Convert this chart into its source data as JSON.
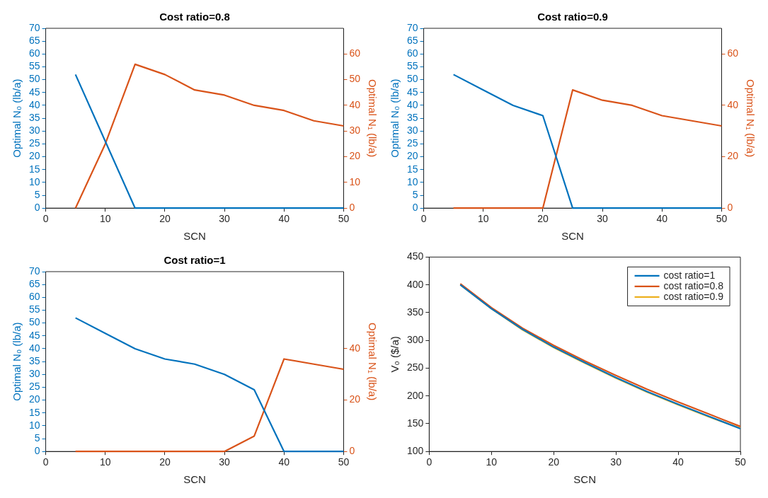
{
  "chart_data": [
    {
      "type": "line",
      "title": "Cost ratio=0.8",
      "xlabel": "SCN",
      "ylabel": "Optimal N₀ (lb/a)",
      "y2label": "Optimal N₁ (lb/a)",
      "x": [
        5,
        10,
        15,
        20,
        25,
        30,
        35,
        40,
        45,
        50
      ],
      "xlim": [
        0,
        50
      ],
      "xticks": [
        0,
        10,
        20,
        30,
        40,
        50
      ],
      "ylim": [
        0,
        70
      ],
      "yticks": [
        0,
        5,
        10,
        15,
        20,
        25,
        30,
        35,
        40,
        45,
        50,
        55,
        60,
        65,
        70
      ],
      "y2lim": [
        0,
        70
      ],
      "y2ticks": [
        0,
        10,
        20,
        30,
        40,
        50,
        60
      ],
      "series": [
        {
          "color": "#0072bd",
          "values": [
            52,
            26,
            0,
            0,
            0,
            0,
            0,
            0,
            0,
            0
          ]
        },
        {
          "color": "#d95319",
          "axis": "y2",
          "values": [
            0,
            25,
            56,
            52,
            46,
            44,
            40,
            38,
            34,
            32
          ]
        }
      ]
    },
    {
      "type": "line",
      "title": "Cost ratio=0.9",
      "xlabel": "SCN",
      "ylabel": "Optimal N₀ (lb/a)",
      "y2label": "Optimal N₁ (lb/a)",
      "x": [
        5,
        10,
        15,
        20,
        25,
        30,
        35,
        40,
        45,
        50
      ],
      "xlim": [
        0,
        50
      ],
      "xticks": [
        0,
        10,
        20,
        30,
        40,
        50
      ],
      "ylim": [
        0,
        70
      ],
      "yticks": [
        0,
        5,
        10,
        15,
        20,
        25,
        30,
        35,
        40,
        45,
        50,
        55,
        60,
        65,
        70
      ],
      "y2lim": [
        0,
        70
      ],
      "y2ticks": [
        0,
        20,
        40,
        60
      ],
      "series": [
        {
          "color": "#0072bd",
          "values": [
            52,
            46,
            40,
            36,
            0,
            0,
            0,
            0,
            0,
            0
          ]
        },
        {
          "color": "#d95319",
          "axis": "y2",
          "values": [
            0,
            0,
            0,
            0,
            46,
            42,
            40,
            36,
            34,
            32
          ]
        }
      ]
    },
    {
      "type": "line",
      "title": "Cost ratio=1",
      "xlabel": "SCN",
      "ylabel": "Optimal N₀ (lb/a)",
      "y2label": "Optimal N₁ (lb/a)",
      "x": [
        5,
        10,
        15,
        20,
        25,
        30,
        35,
        40,
        45,
        50
      ],
      "xlim": [
        0,
        50
      ],
      "xticks": [
        0,
        10,
        20,
        30,
        40,
        50
      ],
      "ylim": [
        0,
        70
      ],
      "yticks": [
        0,
        5,
        10,
        15,
        20,
        25,
        30,
        35,
        40,
        45,
        50,
        55,
        60,
        65,
        70
      ],
      "y2lim": [
        0,
        70
      ],
      "y2ticks": [
        0,
        20,
        40
      ],
      "series": [
        {
          "color": "#0072bd",
          "values": [
            52,
            46,
            40,
            36,
            34,
            30,
            24,
            0,
            0,
            0
          ]
        },
        {
          "color": "#d95319",
          "axis": "y2",
          "values": [
            0,
            0,
            0,
            0,
            0,
            0,
            6,
            36,
            34,
            32
          ]
        }
      ]
    },
    {
      "type": "line",
      "xlabel": "SCN",
      "ylabel": "V₀ ($/a)",
      "x": [
        5,
        10,
        15,
        20,
        25,
        30,
        35,
        40,
        45,
        50
      ],
      "xlim": [
        0,
        50
      ],
      "xticks": [
        0,
        10,
        20,
        30,
        40,
        50
      ],
      "ylim": [
        100,
        450
      ],
      "yticks": [
        100,
        150,
        200,
        250,
        300,
        350,
        400,
        450
      ],
      "legend": "top right",
      "series": [
        {
          "name": "cost ratio=1",
          "color": "#0072bd",
          "values": [
            400,
            357,
            320,
            288,
            260,
            233,
            208,
            185,
            163,
            141
          ]
        },
        {
          "name": "cost ratio=0.8",
          "color": "#d95319",
          "values": [
            402,
            359,
            322,
            291,
            263,
            237,
            212,
            189,
            167,
            145
          ]
        },
        {
          "name": "cost ratio=0.9",
          "color": "#edb120",
          "values": [
            400,
            357,
            319,
            287,
            259,
            232,
            207,
            184,
            162,
            142
          ]
        }
      ]
    }
  ]
}
